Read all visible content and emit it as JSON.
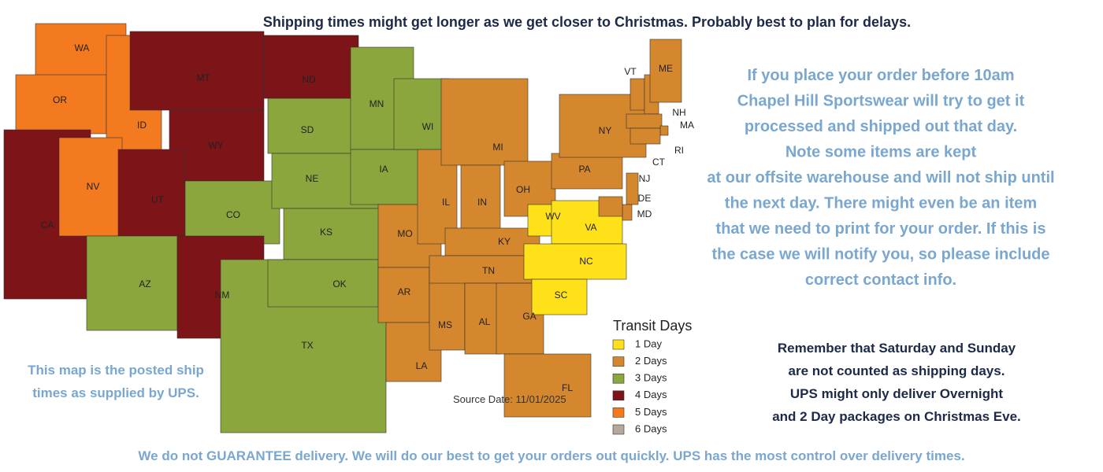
{
  "header": "Shipping times might get longer as we get closer to Christmas.  Probably best to plan for delays.",
  "order_note": [
    "If you place your order before 10am",
    "Chapel Hill Sportswear will try to get it",
    "processed and shipped out that day.",
    "Note some items are kept",
    "at our offsite warehouse and will not ship until",
    "the next day.  There might even be an item",
    "that we need to print for your order.  If this is",
    "the case we will notify you, so please include",
    "correct contact info."
  ],
  "map_note": [
    "This map is the posted ship",
    "times as supplied by UPS."
  ],
  "weekend_note": [
    "Remember that Saturday and Sunday",
    "are not counted as shipping days.",
    "UPS might only deliver Overnight",
    "and 2 Day packages on Christmas Eve."
  ],
  "footer": "We do not GUARANTEE delivery.  We will do our best to get your orders out quickly.  UPS has the most control over delivery times.",
  "map": {
    "source": "Source Date: 11/01/2025",
    "states": [
      {
        "label": "WA",
        "color": "#f47a20"
      },
      {
        "label": "OR",
        "color": "#f47a20"
      },
      {
        "label": "CA",
        "color": "#7d1418"
      },
      {
        "label": "ID",
        "color": "#f47a20"
      },
      {
        "label": "NV",
        "color": "#f47a20"
      },
      {
        "label": "MT",
        "color": "#7d1418"
      },
      {
        "label": "WY",
        "color": "#7d1418"
      },
      {
        "label": "UT",
        "color": "#7d1418"
      },
      {
        "label": "AZ",
        "color": "#8aa63c"
      },
      {
        "label": "CO",
        "color": "#8aa63c"
      },
      {
        "label": "NM",
        "color": "#7d1418"
      },
      {
        "label": "ND",
        "color": "#7d1418"
      },
      {
        "label": "SD",
        "color": "#8aa63c"
      },
      {
        "label": "NE",
        "color": "#8aa63c"
      },
      {
        "label": "KS",
        "color": "#8aa63c"
      },
      {
        "label": "TX",
        "color": "#8aa63c"
      },
      {
        "label": "OK",
        "color": "#8aa63c"
      },
      {
        "label": "MN",
        "color": "#8aa63c"
      },
      {
        "label": "IA",
        "color": "#8aa63c"
      },
      {
        "label": "MO",
        "color": "#d4872c"
      },
      {
        "label": "AR",
        "color": "#d4872c"
      },
      {
        "label": "LA",
        "color": "#d4872c"
      },
      {
        "label": "WI",
        "color": "#8aa63c"
      },
      {
        "label": "IL",
        "color": "#d4872c"
      },
      {
        "label": "MS",
        "color": "#d4872c"
      },
      {
        "label": "MI",
        "color": "#d4872c"
      },
      {
        "label": "IN",
        "color": "#d4872c"
      },
      {
        "label": "KY",
        "color": "#d4872c"
      },
      {
        "label": "TN",
        "color": "#d4872c"
      },
      {
        "label": "AL",
        "color": "#d4872c"
      },
      {
        "label": "GA",
        "color": "#d4872c"
      },
      {
        "label": "FL",
        "color": "#d4872c"
      },
      {
        "label": "OH",
        "color": "#d4872c"
      },
      {
        "label": "WV",
        "color": "#ffe11a"
      },
      {
        "label": "VA",
        "color": "#ffe11a"
      },
      {
        "label": "NC",
        "color": "#ffe11a"
      },
      {
        "label": "SC",
        "color": "#ffe11a"
      },
      {
        "label": "PA",
        "color": "#d4872c"
      },
      {
        "label": "NY",
        "color": "#d4872c"
      },
      {
        "label": "VT",
        "color": "#d4872c"
      },
      {
        "label": "NH",
        "color": "#d4872c"
      },
      {
        "label": "ME",
        "color": "#d4872c"
      },
      {
        "label": "MA",
        "color": "#d4872c"
      },
      {
        "label": "RI",
        "color": "#d4872c"
      },
      {
        "label": "CT",
        "color": "#d4872c"
      },
      {
        "label": "NJ",
        "color": "#d4872c"
      },
      {
        "label": "DE",
        "color": "#d4872c"
      },
      {
        "label": "MD",
        "color": "#d4872c"
      }
    ]
  },
  "legend": {
    "title": "Transit Days",
    "items": [
      {
        "label": "1 Day",
        "color": "#ffe11a"
      },
      {
        "label": "2 Days",
        "color": "#d4872c"
      },
      {
        "label": "3 Days",
        "color": "#8aa63c"
      },
      {
        "label": "4 Days",
        "color": "#7d1418"
      },
      {
        "label": "5 Days",
        "color": "#f47a20"
      },
      {
        "label": "6 Days",
        "color": "#b5a89a"
      }
    ]
  }
}
